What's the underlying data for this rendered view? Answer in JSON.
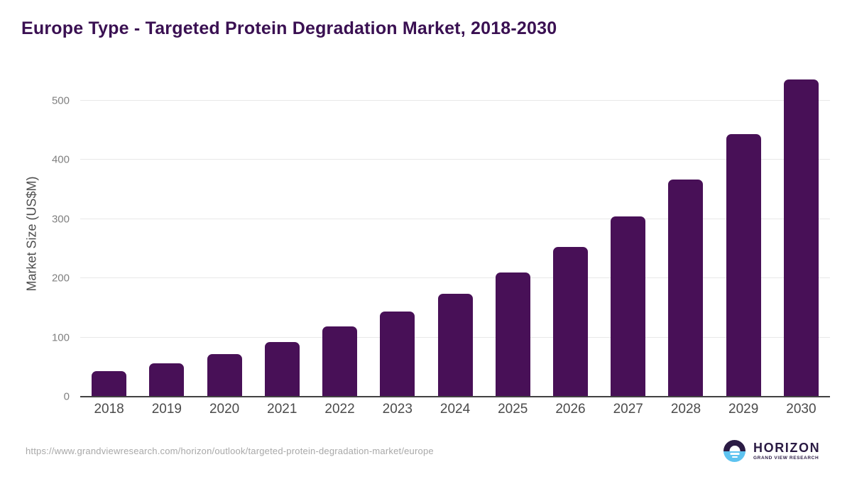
{
  "chart_data": {
    "type": "bar",
    "title": "Europe Type - Targeted Protein Degradation Market, 2018-2030",
    "categories": [
      "2018",
      "2019",
      "2020",
      "2021",
      "2022",
      "2023",
      "2024",
      "2025",
      "2026",
      "2027",
      "2028",
      "2029",
      "2030"
    ],
    "values": [
      43,
      56,
      72,
      92,
      119,
      144,
      174,
      210,
      253,
      305,
      367,
      443,
      536
    ],
    "xlabel": "",
    "ylabel": "Market Size (US$M)",
    "ylim": [
      0,
      550
    ],
    "yticks": [
      0,
      100,
      200,
      300,
      400,
      500
    ],
    "grid": true,
    "legend": false,
    "bar_color": "#481057"
  },
  "footer": {
    "source_url": "https://www.grandviewresearch.com/horizon/outlook/targeted-protein-degradation-market/europe"
  },
  "logo": {
    "name": "HORIZON",
    "subtitle": "GRAND VIEW RESEARCH",
    "purple": "#2b1b44",
    "blue": "#5ec3f0"
  },
  "colors": {
    "title": "#3a1052",
    "axis_title": "#4d4d4d",
    "y_tick": "#808080",
    "x_tick": "#4b4b4b",
    "gridline": "#e8e8e8",
    "axis_line": "#424242",
    "url": "#a8a8a8",
    "background": "#ffffff"
  }
}
